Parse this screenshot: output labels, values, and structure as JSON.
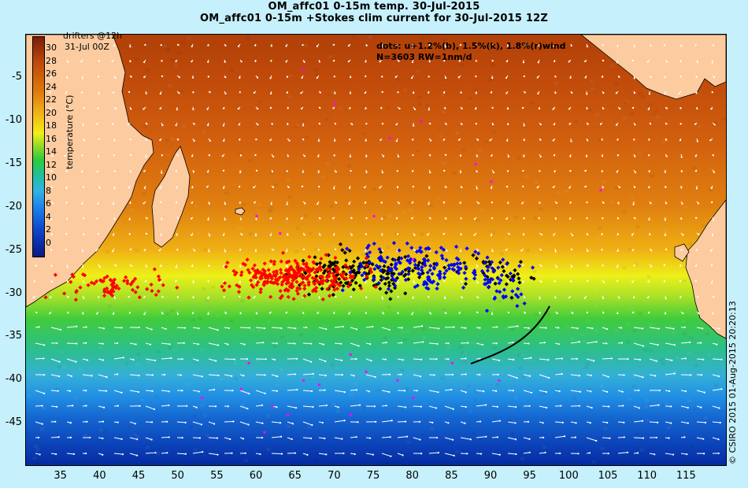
{
  "title": {
    "line1": "OM_affc01 0-15m temp. 30-Jul-2015",
    "line2": "OM_affc01 0-15m +Stokes clim current for 30-Jul-2015 12Z"
  },
  "legend": {
    "drifters_line1": "drifters @12h",
    "drifters_line2": "31-Jul 00Z",
    "dots_line1": "dots: u+1.2%(b), 1.5%(k), 1.8%(r)wind",
    "dots_line2": "N=3603 RW=1nm/d"
  },
  "colorbar": {
    "label": "temperature (°C)",
    "ticks": [
      "30",
      "28",
      "26",
      "24",
      "22",
      "20",
      "18",
      "16",
      "14",
      "12",
      "10",
      "8",
      "6",
      "4",
      "2",
      "0"
    ]
  },
  "axes": {
    "x_ticks": [
      "35",
      "40",
      "45",
      "50",
      "55",
      "60",
      "65",
      "70",
      "75",
      "80",
      "85",
      "90",
      "95",
      "100",
      "105",
      "110",
      "115"
    ],
    "y_ticks": [
      "-5",
      "-10",
      "-15",
      "-20",
      "-25",
      "-30",
      "-35",
      "-40",
      "-45"
    ],
    "lon_range": [
      30.5,
      120
    ],
    "lat_range": [
      -49.8,
      0
    ]
  },
  "copyright": "© CSIRO 2015  01-Aug-2015 20:20:13",
  "colors": {
    "land": "#fccb9f",
    "dot_blue": "#0000ff",
    "dot_black": "#000000",
    "dot_red": "#ff0000",
    "drifter": "#ff00ff",
    "arrow": "#ffffff"
  }
}
